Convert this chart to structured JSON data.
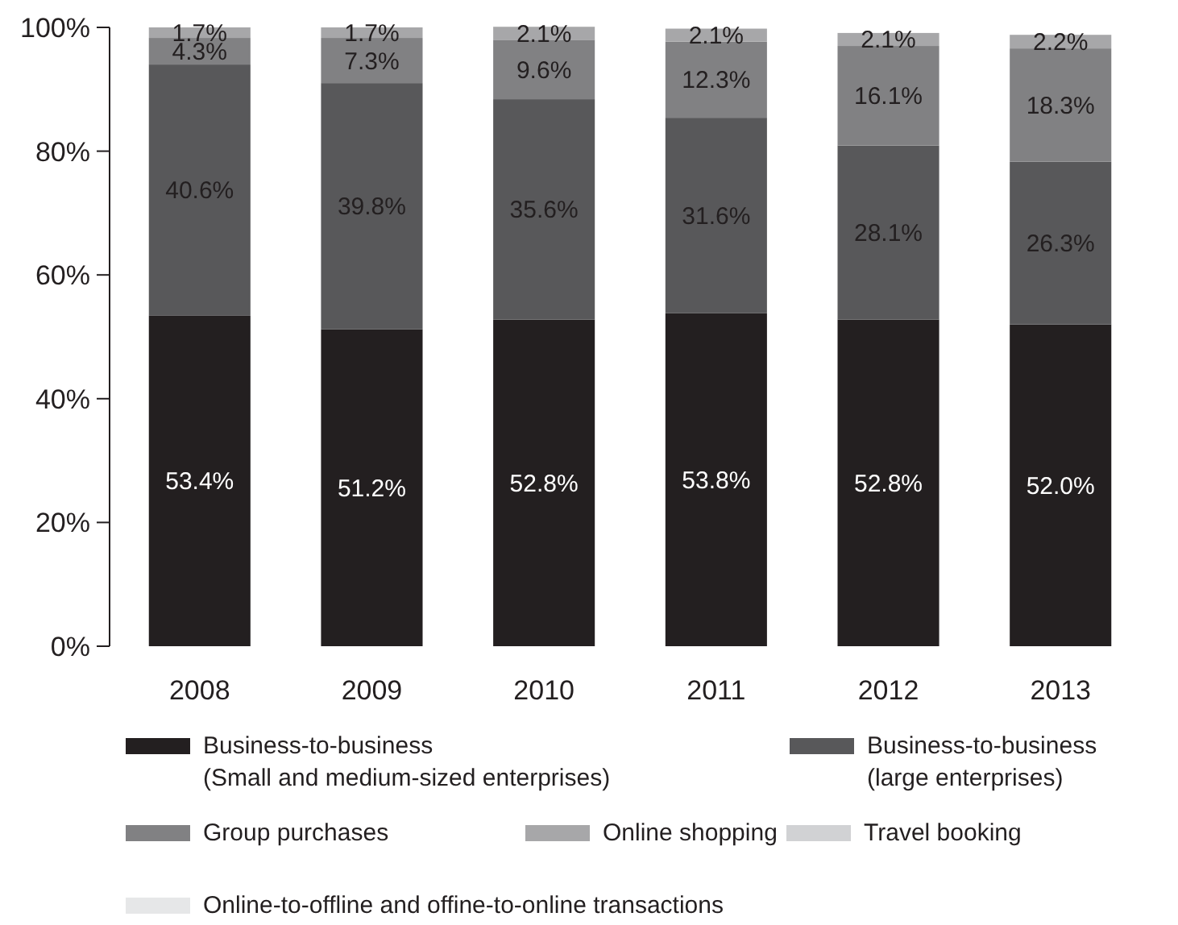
{
  "chart_data": {
    "type": "bar",
    "stacked": true,
    "categories": [
      "2008",
      "2009",
      "2010",
      "2011",
      "2012",
      "2013"
    ],
    "ylim": [
      0,
      100
    ],
    "yticks": [
      {
        "value": 0,
        "label": "0%"
      },
      {
        "value": 20,
        "label": "20%"
      },
      {
        "value": 40,
        "label": "40%"
      },
      {
        "value": 60,
        "label": "60%"
      },
      {
        "value": 80,
        "label": "80%"
      },
      {
        "value": 100,
        "label": "100%"
      }
    ],
    "data_labels": true,
    "legend": "bottom",
    "grid": false,
    "series": [
      {
        "name": "Business-to-business\n(Small and medium-sized enterprises)",
        "color": "#231f20",
        "values": [
          53.4,
          51.2,
          52.8,
          53.8,
          52.8,
          52.0
        ],
        "value_labels": [
          "53.4%",
          "51.2%",
          "52.8%",
          "53.8%",
          "52.8%",
          "52.0%"
        ]
      },
      {
        "name": "Business-to-business\n(large enterprises)",
        "color": "#58585a",
        "values": [
          40.6,
          39.8,
          35.6,
          31.6,
          28.1,
          26.3
        ],
        "value_labels": [
          "40.6%",
          "39.8%",
          "35.6%",
          "31.6%",
          "28.1%",
          "26.3%"
        ]
      },
      {
        "name": "Group purchases",
        "color": "#818183",
        "values": [
          4.3,
          7.3,
          9.6,
          12.3,
          16.1,
          18.3
        ],
        "value_labels": [
          "4.3%",
          "7.3%",
          "9.6%",
          "12.3%",
          "16.1%",
          "18.3%"
        ]
      },
      {
        "name": "Online shopping",
        "color": "#a7a7a9",
        "values": [
          1.7,
          1.7,
          2.1,
          2.1,
          2.1,
          2.2
        ],
        "value_labels": [
          "1.7%",
          "1.7%",
          "2.1%",
          "2.1%",
          "2.1%",
          "2.2%"
        ]
      },
      {
        "name": "Travel booking",
        "color": "#d1d2d4",
        "values": [
          null,
          null,
          null,
          null,
          null,
          null
        ]
      },
      {
        "name": "Online-to-offline and offine-to-online transactions",
        "color": "#e6e7e8",
        "values": [
          null,
          null,
          null,
          null,
          null,
          null
        ]
      }
    ]
  }
}
